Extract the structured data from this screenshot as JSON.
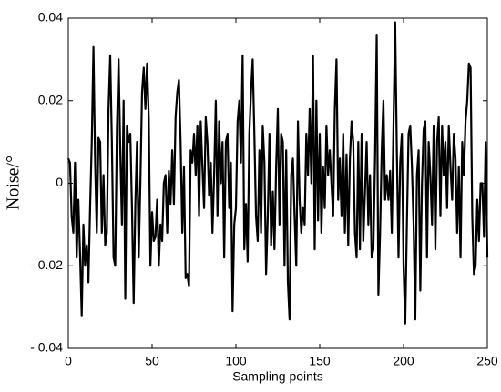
{
  "chart_data": {
    "type": "line",
    "x_label": "Sampling points",
    "y_label": "Noise/°",
    "color": "#000000",
    "x": [
      0,
      1,
      2,
      3,
      4,
      5,
      6,
      7,
      8,
      9,
      10,
      11,
      12,
      13,
      14,
      15,
      16,
      17,
      18,
      19,
      20,
      21,
      22,
      23,
      24,
      25,
      26,
      27,
      28,
      29,
      30,
      31,
      32,
      33,
      34,
      35,
      36,
      37,
      38,
      39,
      40,
      41,
      42,
      43,
      44,
      45,
      46,
      47,
      48,
      49,
      50,
      51,
      52,
      53,
      54,
      55,
      56,
      57,
      58,
      59,
      60,
      61,
      62,
      63,
      64,
      65,
      66,
      67,
      68,
      69,
      70,
      71,
      72,
      73,
      74,
      75,
      76,
      77,
      78,
      79,
      80,
      81,
      82,
      83,
      84,
      85,
      86,
      87,
      88,
      89,
      90,
      91,
      92,
      93,
      94,
      95,
      96,
      97,
      98,
      99,
      100,
      101,
      102,
      103,
      104,
      105,
      106,
      107,
      108,
      109,
      110,
      111,
      112,
      113,
      114,
      115,
      116,
      117,
      118,
      119,
      120,
      121,
      122,
      123,
      124,
      125,
      126,
      127,
      128,
      129,
      130,
      131,
      132,
      133,
      134,
      135,
      136,
      137,
      138,
      139,
      140,
      141,
      142,
      143,
      144,
      145,
      146,
      147,
      148,
      149,
      150,
      151,
      152,
      153,
      154,
      155,
      156,
      157,
      158,
      159,
      160,
      161,
      162,
      163,
      164,
      165,
      166,
      167,
      168,
      169,
      170,
      171,
      172,
      173,
      174,
      175,
      176,
      177,
      178,
      179,
      180,
      181,
      182,
      183,
      184,
      185,
      186,
      187,
      188,
      189,
      190,
      191,
      192,
      193,
      194,
      195,
      196,
      197,
      198,
      199,
      200,
      201,
      202,
      203,
      204,
      205,
      206,
      207,
      208,
      209,
      210,
      211,
      212,
      213,
      214,
      215,
      216,
      217,
      218,
      219,
      220,
      221,
      222,
      223,
      224,
      225,
      226,
      227,
      228,
      229,
      230,
      231,
      232,
      233,
      234,
      235,
      236,
      237,
      238,
      239,
      240,
      241,
      242,
      243,
      244,
      245,
      246,
      247,
      248,
      249,
      250
    ],
    "values": [
      0.006,
      0.005,
      -0.008,
      -0.012,
      0.005,
      -0.018,
      -0.004,
      -0.017,
      -0.032,
      -0.01,
      -0.02,
      -0.015,
      -0.024,
      -0.006,
      0.01,
      0.033,
      0.005,
      -0.012,
      0.011,
      0.01,
      -0.012,
      0.002,
      -0.015,
      -0.012,
      0.018,
      0.031,
      0.01,
      -0.018,
      -0.02,
      0.013,
      0.03,
      0.008,
      -0.01,
      0.02,
      -0.028,
      0.014,
      0.01,
      0.012,
      -0.006,
      -0.029,
      -0.005,
      0.01,
      -0.018,
      0.0,
      0.022,
      0.028,
      0.018,
      0.029,
      0.016,
      -0.02,
      -0.007,
      -0.014,
      -0.013,
      -0.004,
      -0.02,
      -0.01,
      -0.014,
      0.0,
      0.002,
      -0.012,
      0.003,
      -0.005,
      0.008,
      -0.005,
      0.016,
      0.022,
      0.025,
      0.01,
      -0.012,
      0.004,
      -0.023,
      -0.022,
      -0.025,
      0.008,
      0.005,
      0.012,
      0.002,
      0.014,
      -0.008,
      0.015,
      0.004,
      -0.006,
      0.016,
      0.01,
      -0.003,
      0.005,
      -0.012,
      0.002,
      0.02,
      -0.008,
      0.015,
      0.0,
      0.01,
      -0.018,
      0.01,
      0.012,
      -0.006,
      0.005,
      -0.031,
      -0.01,
      -0.006,
      0.015,
      0.02,
      0.005,
      0.031,
      -0.016,
      -0.005,
      -0.019,
      0.012,
      0.022,
      0.03,
      0.012,
      -0.008,
      -0.014,
      0.008,
      -0.012,
      0.014,
      0.005,
      -0.022,
      -0.008,
      0.012,
      -0.015,
      -0.002,
      -0.016,
      0.004,
      0.018,
      -0.01,
      0.012,
      0.01,
      -0.02,
      0.008,
      -0.024,
      -0.033,
      0.002,
      0.006,
      -0.008,
      -0.02,
      0.015,
      -0.004,
      -0.012,
      -0.006,
      -0.01,
      0.012,
      0.002,
      0.018,
      0.0,
      0.031,
      -0.016,
      0.02,
      -0.009,
      0.012,
      -0.012,
      0.004,
      -0.006,
      0.014,
      0.002,
      0.008,
      0.0,
      -0.008,
      0.018,
      0.03,
      -0.004,
      0.006,
      -0.008,
      0.012,
      -0.012,
      0.007,
      -0.015,
      0.006,
      0.015,
      0.01,
      -0.012,
      -0.018,
      0.01,
      -0.016,
      0.012,
      -0.014,
      -0.002,
      0.01,
      -0.01,
      0.002,
      -0.018,
      -0.016,
      0.006,
      0.036,
      -0.027,
      -0.012,
      0.008,
      0.02,
      -0.004,
      0.002,
      -0.004,
      0.003,
      -0.012,
      0.014,
      0.039,
      0.008,
      -0.018,
      0.005,
      0.012,
      -0.02,
      -0.034,
      -0.01,
      0.012,
      0.014,
      0.004,
      -0.01,
      -0.033,
      0.002,
      0.008,
      -0.026,
      0.0,
      0.013,
      0.015,
      -0.018,
      0.01,
      0.002,
      -0.01,
      0.014,
      -0.016,
      0.01,
      0.016,
      -0.008,
      0.014,
      0.002,
      0.01,
      -0.006,
      0.014,
      0.004,
      -0.004,
      0.012,
      0.006,
      -0.012,
      0.004,
      -0.018,
      0.01,
      0.002,
      0.015,
      0.02,
      0.029,
      0.028,
      -0.008,
      -0.022,
      -0.02,
      -0.004,
      -0.014,
      0.0,
      0.0,
      -0.013,
      0.01,
      -0.018
    ],
    "xlim": [
      0,
      250
    ],
    "xticks": [
      0,
      50,
      100,
      150,
      200,
      250
    ],
    "ylim": [
      -0.04,
      0.04
    ],
    "yticks": [
      {
        "value": -0.04,
        "label": "- 0.04"
      },
      {
        "value": -0.02,
        "label": "- 0.02"
      },
      0,
      0.02,
      0.04
    ],
    "grid": false
  }
}
